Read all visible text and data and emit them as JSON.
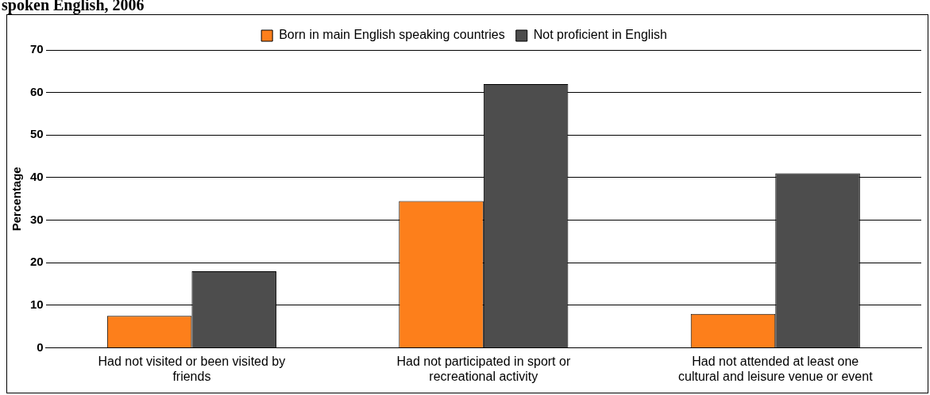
{
  "chart_data": {
    "type": "bar",
    "title": "spoken English, 2006",
    "ylabel": "Percentage",
    "categories": [
      "Had not visited or been visited by friends",
      "Had not participated in sport or recreational activity",
      "Had not attended at least one cultural and leisure venue or event"
    ],
    "series": [
      {
        "name": "Born in main English speaking countries",
        "color": "#fd7f1b",
        "values": [
          7.5,
          34.5,
          8
        ]
      },
      {
        "name": "Not proficient in English",
        "color": "#4d4d4d",
        "values": [
          18,
          62,
          41
        ]
      }
    ],
    "ylim": [
      0,
      70
    ],
    "yticks": [
      0,
      10,
      20,
      30,
      40,
      50,
      60,
      70
    ],
    "grid": "y",
    "legend": "top"
  }
}
